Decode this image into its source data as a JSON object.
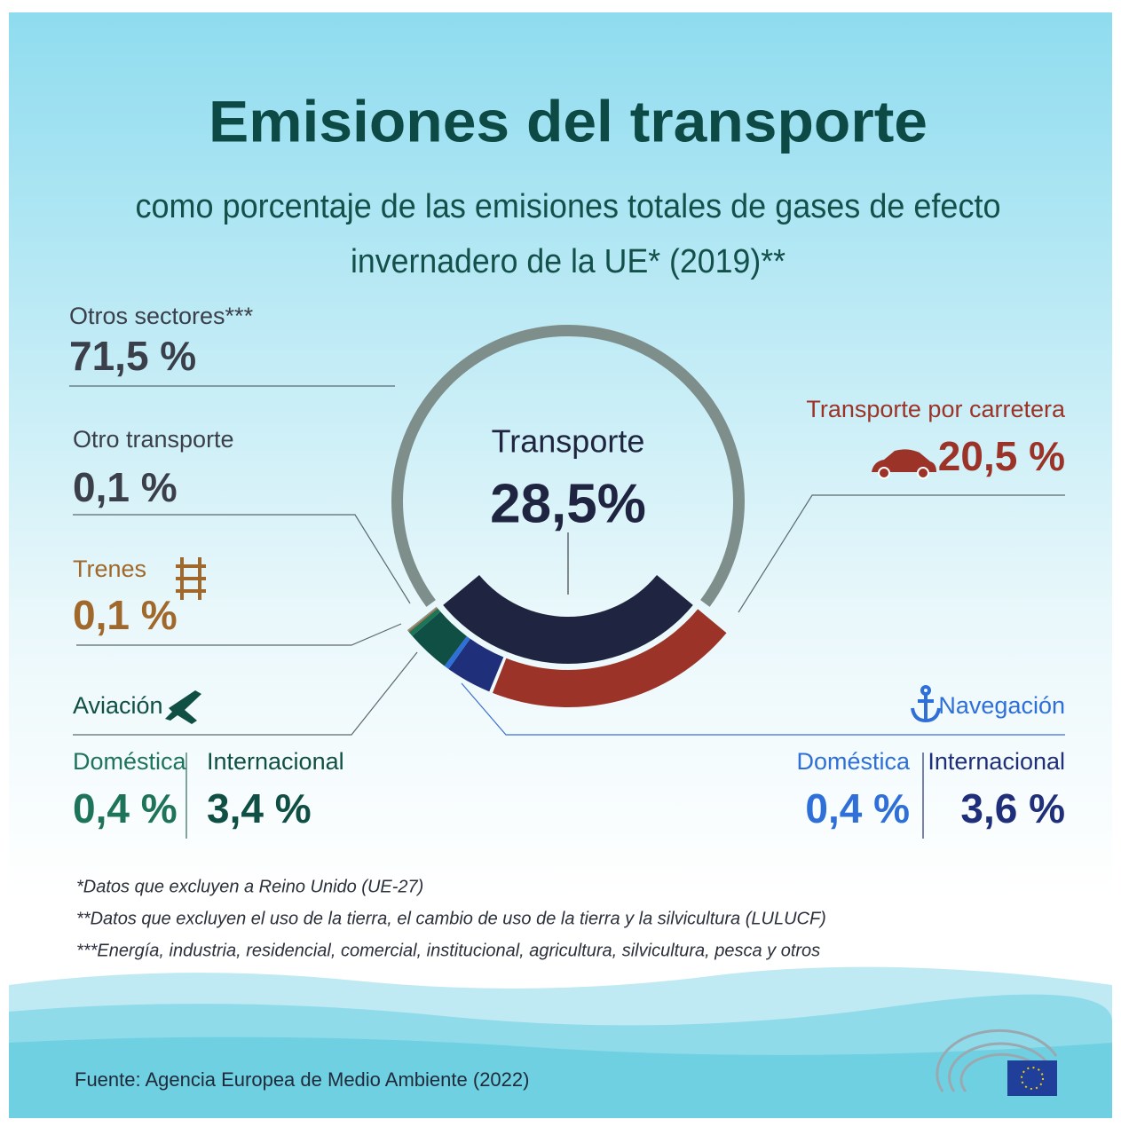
{
  "chart_data": {
    "type": "donut",
    "title": "Emisiones del transporte",
    "subtitle": [
      "como porcentaje de las emisiones totales de gases de efecto",
      "invernadero de la UE* (2019)**"
    ],
    "total": {
      "name": "Transporte",
      "value": 28.5,
      "value_label": "28,5%",
      "color": "#1f2540"
    },
    "slices": [
      {
        "name": "Otros sectores***",
        "value": 71.5,
        "value_label": "71,5 %",
        "color": "#7e8e8b",
        "label_color": "#3a3f4a"
      },
      {
        "name": "Transporte por carretera",
        "value": 20.5,
        "value_label": "20,5 %",
        "color": "#9b3328"
      },
      {
        "name": "Internacional",
        "value": 3.6,
        "value_label": "3,6 %",
        "color": "#1f2f7a"
      },
      {
        "name": "Doméstica",
        "value": 0.4,
        "value_label": "0,4 %",
        "color": "#2f6fd8"
      },
      {
        "name": "Internacional",
        "value": 3.4,
        "value_label": "3,4 %",
        "color": "#0f4f44"
      },
      {
        "name": "Doméstica",
        "value": 0.4,
        "value_label": "0,4 %",
        "color": "#1d7458"
      },
      {
        "name": "Trenes",
        "value": 0.1,
        "value_label": "0,1 %",
        "color": "#a0682a"
      },
      {
        "name": "Otro transporte",
        "value": 0.1,
        "value_label": "0,1 %",
        "color": "#8a8f90",
        "label_color": "#3a3f4a"
      }
    ],
    "groups": [
      "Aviación",
      "Navegación"
    ],
    "footnotes": [
      "*Datos que excluyen a Reino Unido (UE-27)",
      "**Datos que excluyen el uso de la tierra, el cambio de uso de la tierra y la silvicultura (LULUCF)",
      "***Energía, industria, residencial, comercial, institucional, agricultura, silvicultura, pesca y otros"
    ],
    "source": "Fuente: Agencia Europea de Medio Ambiente (2022)"
  }
}
